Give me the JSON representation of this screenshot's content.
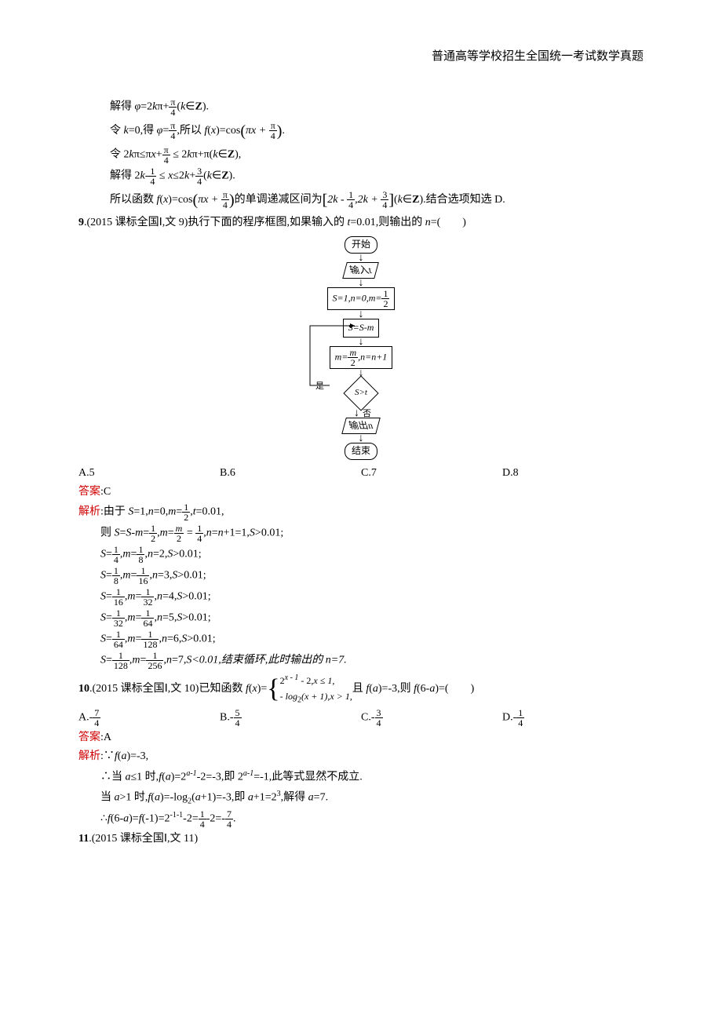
{
  "header": {
    "title": "普通高等学校招生全国统一考试数学真题"
  },
  "sol8": {
    "l1a": "解得 ",
    "l1b": "φ",
    "l1c": "=2",
    "l1d": "k",
    "l1e": "π+",
    "l1_frac_n": "π",
    "l1_frac_d": "4",
    "l1f": "(",
    "l1g": "k",
    "l1h": "∈",
    "l1i": "Z",
    "l1j": ").",
    "l2a": "令 ",
    "l2b": "k",
    "l2c": "=0,得 ",
    "l2d": "φ",
    "l2e": "=",
    "l2_frac_n": "π",
    "l2_frac_d": "4",
    "l2f": ",所以 ",
    "l2g": "f",
    "l2h": "(",
    "l2i": "x",
    "l2j": ")=cos",
    "l2k": "πx + ",
    "l2k_frac_n": "π",
    "l2k_frac_d": "4",
    "l2l": ".",
    "l3a": "令 2",
    "l3b": "k",
    "l3c": "π≤π",
    "l3d": "x",
    "l3e": "+",
    "l3_frac_n": "π",
    "l3_frac_d": "4",
    "l3f": " ≤ 2",
    "l3g": "k",
    "l3h": "π+π(",
    "l3i": "k",
    "l3j": "∈",
    "l3k": "Z",
    "l3l": "),",
    "l4a": "解得 2",
    "l4b": "k",
    "l4c": "-",
    "l4_fr1_n": "1",
    "l4_fr1_d": "4",
    "l4d": " ≤ ",
    "l4e": "x",
    "l4f": "≤2",
    "l4g": "k",
    "l4h": "+",
    "l4_fr2_n": "3",
    "l4_fr2_d": "4",
    "l4i": "(",
    "l4j": "k",
    "l4k": "∈",
    "l4l": "Z",
    "l4m": ").",
    "l5a": "所以函数 ",
    "l5b": "f",
    "l5c": "(",
    "l5d": "x",
    "l5e": ")=cos",
    "l5_in": "πx + ",
    "l5_fr_n": "π",
    "l5_fr_d": "4",
    "l5f": "的单调递减区间为",
    "l5g": "2k - ",
    "l5_frA_n": "1",
    "l5_frA_d": "4",
    "l5h": ",2k + ",
    "l5_frB_n": "3",
    "l5_frB_d": "4",
    "l5i": "(",
    "l5j": "k",
    "l5k": "∈",
    "l5l": "Z",
    "l5m": ").结合选项知选 D."
  },
  "q9": {
    "num": "9",
    "src": ".(2015 课标全国Ⅰ,文 9)执行下面的程序框图,如果输入的 ",
    "t": "t",
    "eq": "=0.01,则输出的 ",
    "n": "n",
    "tail": "=(　　)",
    "flow": {
      "start": "开始",
      "input": "输入t",
      "init": "S=1,n=0,m=",
      "init_fr_n": "1",
      "init_fr_d": "2",
      "step1": "S=S-m",
      "step2": "m=",
      "step2_fr_n": "m",
      "step2_fr_d": "2",
      "step2b": ",n=n+1",
      "cond": "S>t",
      "yes": "是",
      "no": "否",
      "out": "输出n",
      "end": "结束"
    },
    "opts": {
      "A": "A.5",
      "B": "B.6",
      "C": "C.7",
      "D": "D.8"
    },
    "ans_label": "答案",
    "ans": ":C",
    "exp_label": "解析",
    "e0": ":由于 ",
    "e0b": "S",
    "e0c": "=1,",
    "e0d": "n",
    "e0e": "=0,",
    "e0f": "m",
    "e0g": "=",
    "e0_fr_n": "1",
    "e0_fr_d": "2",
    "e0h": ",",
    "e0i": "t",
    "e0j": "=0.01,",
    "e1a": "则 ",
    "e1b": "S",
    "e1c": "=",
    "e1d": "S",
    "e1e": "-",
    "e1f": "m",
    "e1g": "=",
    "e1_frA_n": "1",
    "e1_frA_d": "2",
    "e1h": ",",
    "e1i": "m",
    "e1j": "=",
    "e1_frB_n": "m",
    "e1_frB_d": "2",
    "e1k": " = ",
    "e1_frC_n": "1",
    "e1_frC_d": "4",
    "e1l": ",",
    "e1m": "n",
    "e1n": "=",
    "e1o": "n",
    "e1p": "+1=1,",
    "e1q": "S",
    "e1r": ">0.01;",
    "rows": [
      {
        "sA_n": "1",
        "sA_d": "4",
        "mA_n": "1",
        "mA_d": "8",
        "n": "2"
      },
      {
        "sA_n": "1",
        "sA_d": "8",
        "mA_n": "1",
        "mA_d": "16",
        "n": "3"
      },
      {
        "sA_n": "1",
        "sA_d": "16",
        "mA_n": "1",
        "mA_d": "32",
        "n": "4"
      },
      {
        "sA_n": "1",
        "sA_d": "32",
        "mA_n": "1",
        "mA_d": "64",
        "n": "5"
      },
      {
        "sA_n": "1",
        "sA_d": "64",
        "mA_n": "1",
        "mA_d": "128",
        "n": "6"
      }
    ],
    "row_txt": {
      "S": "S",
      "eq": "=",
      "m": "m",
      "n": "n",
      "comma": ",",
      "cond": "S",
      "gt": ">0.01;"
    },
    "last": {
      "sA_n": "1",
      "sA_d": "128",
      "mA_n": "1",
      "mA_d": "256",
      "n": "7",
      "tail": "S<0.01,结束循环,此时输出的 n=7."
    }
  },
  "q10": {
    "num": "10",
    "src": ".(2015 课标全国Ⅰ,文 10)已知函数 ",
    "f": "f",
    "x": "x",
    "eq": ")=",
    "pw1a": "2",
    "pw1b": "x - 1",
    "pw1c": " - 2,",
    "pw1d": "x ≤ 1,",
    "pw2a": "- ",
    "pw2b": "log",
    "pw2c": "2",
    "pw2d": "(x + 1),",
    "pw2e": "x > 1,",
    "mid": "且 ",
    "fa": "f",
    "a": "a",
    "eq2": ")=-3,则 ",
    "fb": "f",
    "six": "(6-",
    "a2": "a",
    "tail": ")=(　　)",
    "opts": {
      "A": {
        "l": "A.-",
        "n": "7",
        "d": "4"
      },
      "B": {
        "l": "B.-",
        "n": "5",
        "d": "4"
      },
      "C": {
        "l": "C.-",
        "n": "3",
        "d": "4"
      },
      "D": {
        "l": "D.-",
        "n": "1",
        "d": "4"
      }
    },
    "ans_label": "答案",
    "ans": ":A",
    "exp_label": "解析",
    "e0": ":∵",
    "e0b": "f",
    "e0c": "(",
    "e0d": "a",
    "e0e": ")=-3,",
    "l1": "∴当 ",
    "l1b": "a",
    "l1c": "≤1 时,",
    "l1d": "f",
    "l1e": "(",
    "l1f": "a",
    "l1g": ")=2",
    "l1h": "a-1",
    "l1i": "-2=-3,即 2",
    "l1j": "a-1",
    "l1k": "=-1,此等式显然不成立.",
    "l2": "当 ",
    "l2b": "a",
    "l2c": ">1 时,",
    "l2d": "f",
    "l2e": "(",
    "l2f": "a",
    "l2g": ")=-log",
    "l2h": "2",
    "l2i": "(",
    "l2j": "a",
    "l2k": "+1)=-3,即 ",
    "l2l": "a",
    "l2m": "+1=2",
    "l2n": "3",
    "l2o": ",解得 ",
    "l2p": "a",
    "l2q": "=7.",
    "l3": "∴",
    "l3b": "f",
    "l3c": "(6-",
    "l3d": "a",
    "l3e": ")=",
    "l3f": "f",
    "l3g": "(-1)=2",
    "l3h": "-1-1",
    "l3i": "-2=",
    "l3_frA_n": "1",
    "l3_frA_d": "4",
    "l3j": "-2=-",
    "l3_frB_n": "7",
    "l3_frB_d": "4",
    "l3k": "."
  },
  "q11": {
    "num": "11",
    "src": ".(2015 课标全国Ⅰ,文 11)"
  }
}
